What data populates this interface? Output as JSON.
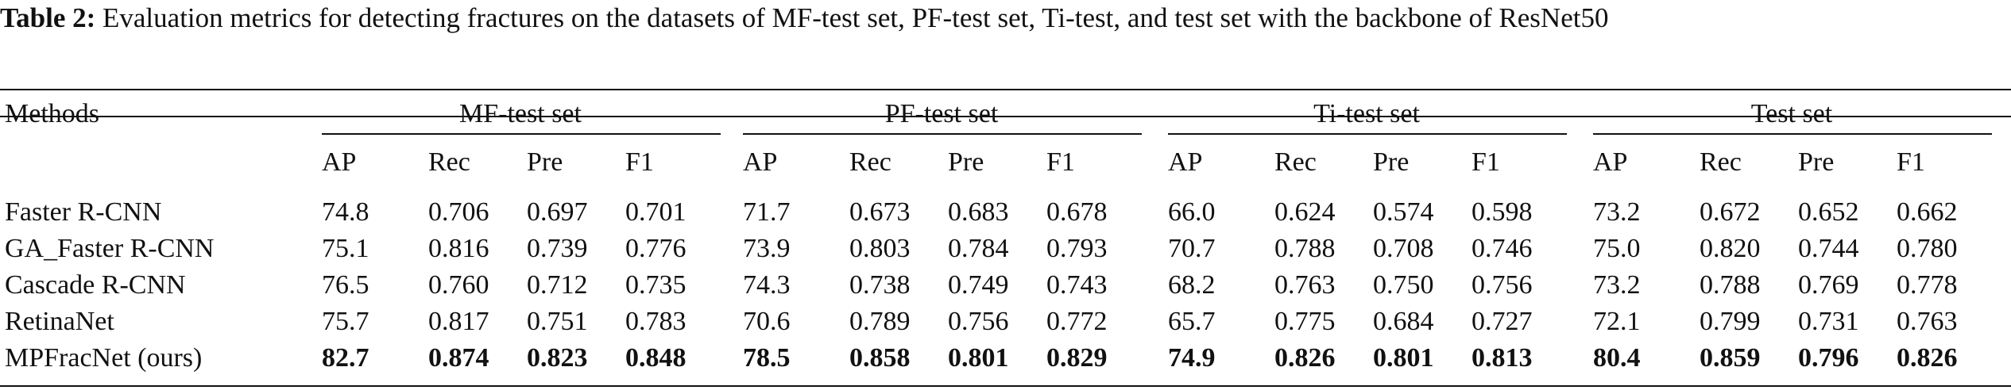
{
  "caption": {
    "label": "Table 2:",
    "text": "Evaluation metrics for detecting fractures on the datasets of MF-test set, PF-test set, Ti-test, and test set with the backbone of ResNet50"
  },
  "table": {
    "methods_header": "Methods",
    "groups": [
      "MF-test set",
      "PF-test set",
      "Ti-test set",
      "Test set"
    ],
    "metrics": [
      "AP",
      "Rec",
      "Pre",
      "F1"
    ],
    "rows": [
      {
        "method": "Faster R-CNN",
        "values": [
          "74.8",
          "0.706",
          "0.697",
          "0.701",
          "71.7",
          "0.673",
          "0.683",
          "0.678",
          "66.0",
          "0.624",
          "0.574",
          "0.598",
          "73.2",
          "0.672",
          "0.652",
          "0.662"
        ],
        "bold": false
      },
      {
        "method": "GA_Faster R-CNN",
        "values": [
          "75.1",
          "0.816",
          "0.739",
          "0.776",
          "73.9",
          "0.803",
          "0.784",
          "0.793",
          "70.7",
          "0.788",
          "0.708",
          "0.746",
          "75.0",
          "0.820",
          "0.744",
          "0.780"
        ],
        "bold": false
      },
      {
        "method": "Cascade R-CNN",
        "values": [
          "76.5",
          "0.760",
          "0.712",
          "0.735",
          "74.3",
          "0.738",
          "0.749",
          "0.743",
          "68.2",
          "0.763",
          "0.750",
          "0.756",
          "73.2",
          "0.788",
          "0.769",
          "0.778"
        ],
        "bold": false
      },
      {
        "method": "RetinaNet",
        "values": [
          "75.7",
          "0.817",
          "0.751",
          "0.783",
          "70.6",
          "0.789",
          "0.756",
          "0.772",
          "65.7",
          "0.775",
          "0.684",
          "0.727",
          "72.1",
          "0.799",
          "0.731",
          "0.763"
        ],
        "bold": false
      },
      {
        "method": "MPFracNet (ours)",
        "values": [
          "82.7",
          "0.874",
          "0.823",
          "0.848",
          "78.5",
          "0.858",
          "0.801",
          "0.829",
          "74.9",
          "0.826",
          "0.801",
          "0.813",
          "80.4",
          "0.859",
          "0.796",
          "0.826"
        ],
        "bold": true
      }
    ]
  }
}
